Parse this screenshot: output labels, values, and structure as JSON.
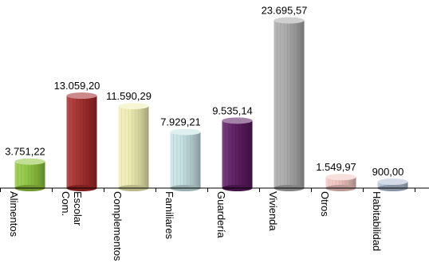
{
  "chart_data": {
    "type": "bar",
    "title": "",
    "xlabel": "",
    "ylabel": "",
    "grid": false,
    "legend": "none",
    "ylim": [
      0,
      25000
    ],
    "categories": [
      {
        "lines": [
          "Alimentos"
        ]
      },
      {
        "lines": [
          "Com.",
          "Escolar"
        ]
      },
      {
        "lines": [
          "Complementos"
        ]
      },
      {
        "lines": [
          "Familiares"
        ]
      },
      {
        "lines": [
          "Guardería"
        ]
      },
      {
        "lines": [
          "Vivienda"
        ]
      },
      {
        "lines": [
          "Otros"
        ]
      },
      {
        "lines": [
          "Habitabilidad"
        ]
      }
    ],
    "values": [
      3751.22,
      13059.2,
      11590.29,
      7929.21,
      9535.14,
      23695.57,
      1549.97,
      900.0
    ],
    "value_labels": [
      "3.751,22",
      "13.059,20",
      "11.590,29",
      "7.929,21",
      "9.535,14",
      "23.695,57",
      "1.549,97",
      "900,00"
    ],
    "colors": [
      "#8fc63f",
      "#a32a2a",
      "#eeedb0",
      "#c4e0e2",
      "#5a1a5e",
      "#a9a9a9",
      "#f0c4c0",
      "#aebed4"
    ]
  }
}
